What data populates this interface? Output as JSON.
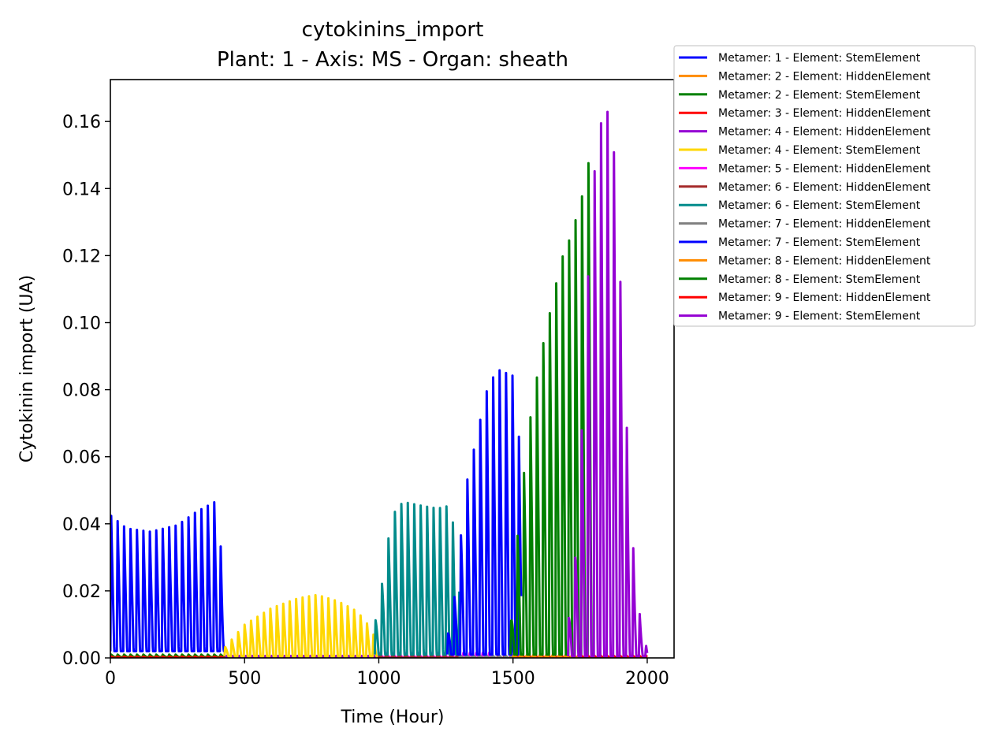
{
  "chart_data": {
    "type": "line",
    "title": "cytokinins_import",
    "subtitle": "Plant: 1 - Axis: MS - Organ: sheath",
    "xlabel": "Time (Hour)",
    "ylabel": "Cytokinin import (UA)",
    "xlim": [
      0,
      2100
    ],
    "ylim": [
      0,
      0.1725
    ],
    "xticks": [
      0,
      500,
      1000,
      1500,
      2000
    ],
    "xtick_labels": [
      "0",
      "500",
      "1000",
      "1500",
      "2000"
    ],
    "yticks": [
      0,
      0.02,
      0.04,
      0.06,
      0.08,
      0.1,
      0.12,
      0.14,
      0.16
    ],
    "ytick_labels": [
      "0.00",
      "0.02",
      "0.04",
      "0.06",
      "0.08",
      "0.10",
      "0.12",
      "0.14",
      "0.16"
    ],
    "grid": false,
    "legend_position": "outside top-right",
    "oscillation_period_hours": 24,
    "series": [
      {
        "name": "Metamer: 1 - Element: StemElement",
        "color": "#0000ff",
        "start": 0,
        "end": 430,
        "base": 0.002,
        "peaks": [
          [
            0,
            0.043
          ],
          [
            60,
            0.039
          ],
          [
            150,
            0.038
          ],
          [
            250,
            0.04
          ],
          [
            320,
            0.044
          ],
          [
            390,
            0.047
          ],
          [
            410,
            0.035
          ],
          [
            430,
            0.006
          ]
        ]
      },
      {
        "name": "Metamer: 2 - Element: HiddenElement",
        "color": "#ff8c00",
        "start": 0,
        "end": 430,
        "base": 0.0003,
        "peaks": [
          [
            0,
            0.0008
          ],
          [
            430,
            0.0008
          ]
        ]
      },
      {
        "name": "Metamer: 2 - Element: StemElement",
        "color": "#008000",
        "start": 0,
        "end": 430,
        "base": 0.0002,
        "peaks": [
          [
            0,
            0.001
          ],
          [
            430,
            0.001
          ]
        ]
      },
      {
        "name": "Metamer: 3 - Element: HiddenElement",
        "color": "#ff0000",
        "start": 0,
        "end": 2000,
        "base": 0.0,
        "peaks": [
          [
            0,
            0.0004
          ],
          [
            2000,
            0.0004
          ]
        ]
      },
      {
        "name": "Metamer: 4 - Element: HiddenElement",
        "color": "#9400d3",
        "start": 430,
        "end": 1000,
        "base": 0.0,
        "peaks": [
          [
            430,
            0.0006
          ],
          [
            1000,
            0.0006
          ]
        ]
      },
      {
        "name": "Metamer: 4 - Element: StemElement",
        "color": "#ffd700",
        "start": 425,
        "end": 1000,
        "base": 0.0005,
        "peaks": [
          [
            425,
            0.003
          ],
          [
            500,
            0.01
          ],
          [
            600,
            0.015
          ],
          [
            700,
            0.018
          ],
          [
            770,
            0.019
          ],
          [
            850,
            0.017
          ],
          [
            920,
            0.014
          ],
          [
            970,
            0.009
          ],
          [
            1000,
            0.003
          ]
        ]
      },
      {
        "name": "Metamer: 5 - Element: HiddenElement",
        "color": "#ff00ff",
        "start": 1000,
        "end": 1430,
        "base": 0.0002,
        "peaks": [
          [
            1000,
            0.0015
          ],
          [
            1430,
            0.0015
          ]
        ]
      },
      {
        "name": "Metamer: 6 - Element: HiddenElement",
        "color": "#a52a2a",
        "start": 1000,
        "end": 1300,
        "base": 0.0,
        "peaks": [
          [
            1000,
            0.0008
          ],
          [
            1300,
            0.0008
          ]
        ]
      },
      {
        "name": "Metamer: 6 - Element: StemElement",
        "color": "#008b8b",
        "start": 985,
        "end": 1300,
        "base": 0.001,
        "peaks": [
          [
            985,
            0.01
          ],
          [
            1010,
            0.021
          ],
          [
            1030,
            0.034
          ],
          [
            1060,
            0.044
          ],
          [
            1090,
            0.047
          ],
          [
            1150,
            0.046
          ],
          [
            1220,
            0.045
          ],
          [
            1270,
            0.046
          ],
          [
            1300,
            0.02
          ]
        ]
      },
      {
        "name": "Metamer: 7 - Element: HiddenElement",
        "color": "#808080",
        "start": 1300,
        "end": 1500,
        "base": 0.0,
        "peaks": [
          [
            1300,
            0.0008
          ],
          [
            1500,
            0.0008
          ]
        ]
      },
      {
        "name": "Metamer: 7 - Element: StemElement",
        "color": "#0000ff",
        "start": 1255,
        "end": 1530,
        "base": 0.001,
        "peaks": [
          [
            1255,
            0.006
          ],
          [
            1290,
            0.022
          ],
          [
            1320,
            0.05
          ],
          [
            1360,
            0.065
          ],
          [
            1400,
            0.08
          ],
          [
            1440,
            0.087
          ],
          [
            1500,
            0.085
          ],
          [
            1530,
            0.06
          ]
        ]
      },
      {
        "name": "Metamer: 8 - Element: HiddenElement",
        "color": "#ff8c00",
        "start": 1500,
        "end": 1750,
        "base": 0.0,
        "peaks": [
          [
            1500,
            0.0008
          ],
          [
            1750,
            0.0008
          ]
        ]
      },
      {
        "name": "Metamer: 8 - Element: StemElement",
        "color": "#008000",
        "start": 1490,
        "end": 1800,
        "base": 0.001,
        "peaks": [
          [
            1490,
            0.008
          ],
          [
            1520,
            0.04
          ],
          [
            1560,
            0.07
          ],
          [
            1600,
            0.09
          ],
          [
            1640,
            0.105
          ],
          [
            1680,
            0.12
          ],
          [
            1720,
            0.128
          ],
          [
            1760,
            0.14
          ],
          [
            1790,
            0.153
          ],
          [
            1800,
            0.13
          ]
        ]
      },
      {
        "name": "Metamer: 9 - Element: HiddenElement",
        "color": "#ff0000",
        "start": 1750,
        "end": 2000,
        "base": 0.0,
        "peaks": [
          [
            1750,
            0.0008
          ],
          [
            2000,
            0.0008
          ]
        ]
      },
      {
        "name": "Metamer: 9 - Element: StemElement",
        "color": "#9400d3",
        "start": 1705,
        "end": 2000,
        "base": 0.0005,
        "peaks": [
          [
            1705,
            0.01
          ],
          [
            1730,
            0.027
          ],
          [
            1760,
            0.075
          ],
          [
            1790,
            0.135
          ],
          [
            1820,
            0.16
          ],
          [
            1855,
            0.165
          ],
          [
            1880,
            0.15
          ],
          [
            1910,
            0.095
          ],
          [
            1940,
            0.04
          ],
          [
            1970,
            0.014
          ],
          [
            2000,
            0.002
          ]
        ]
      }
    ]
  }
}
